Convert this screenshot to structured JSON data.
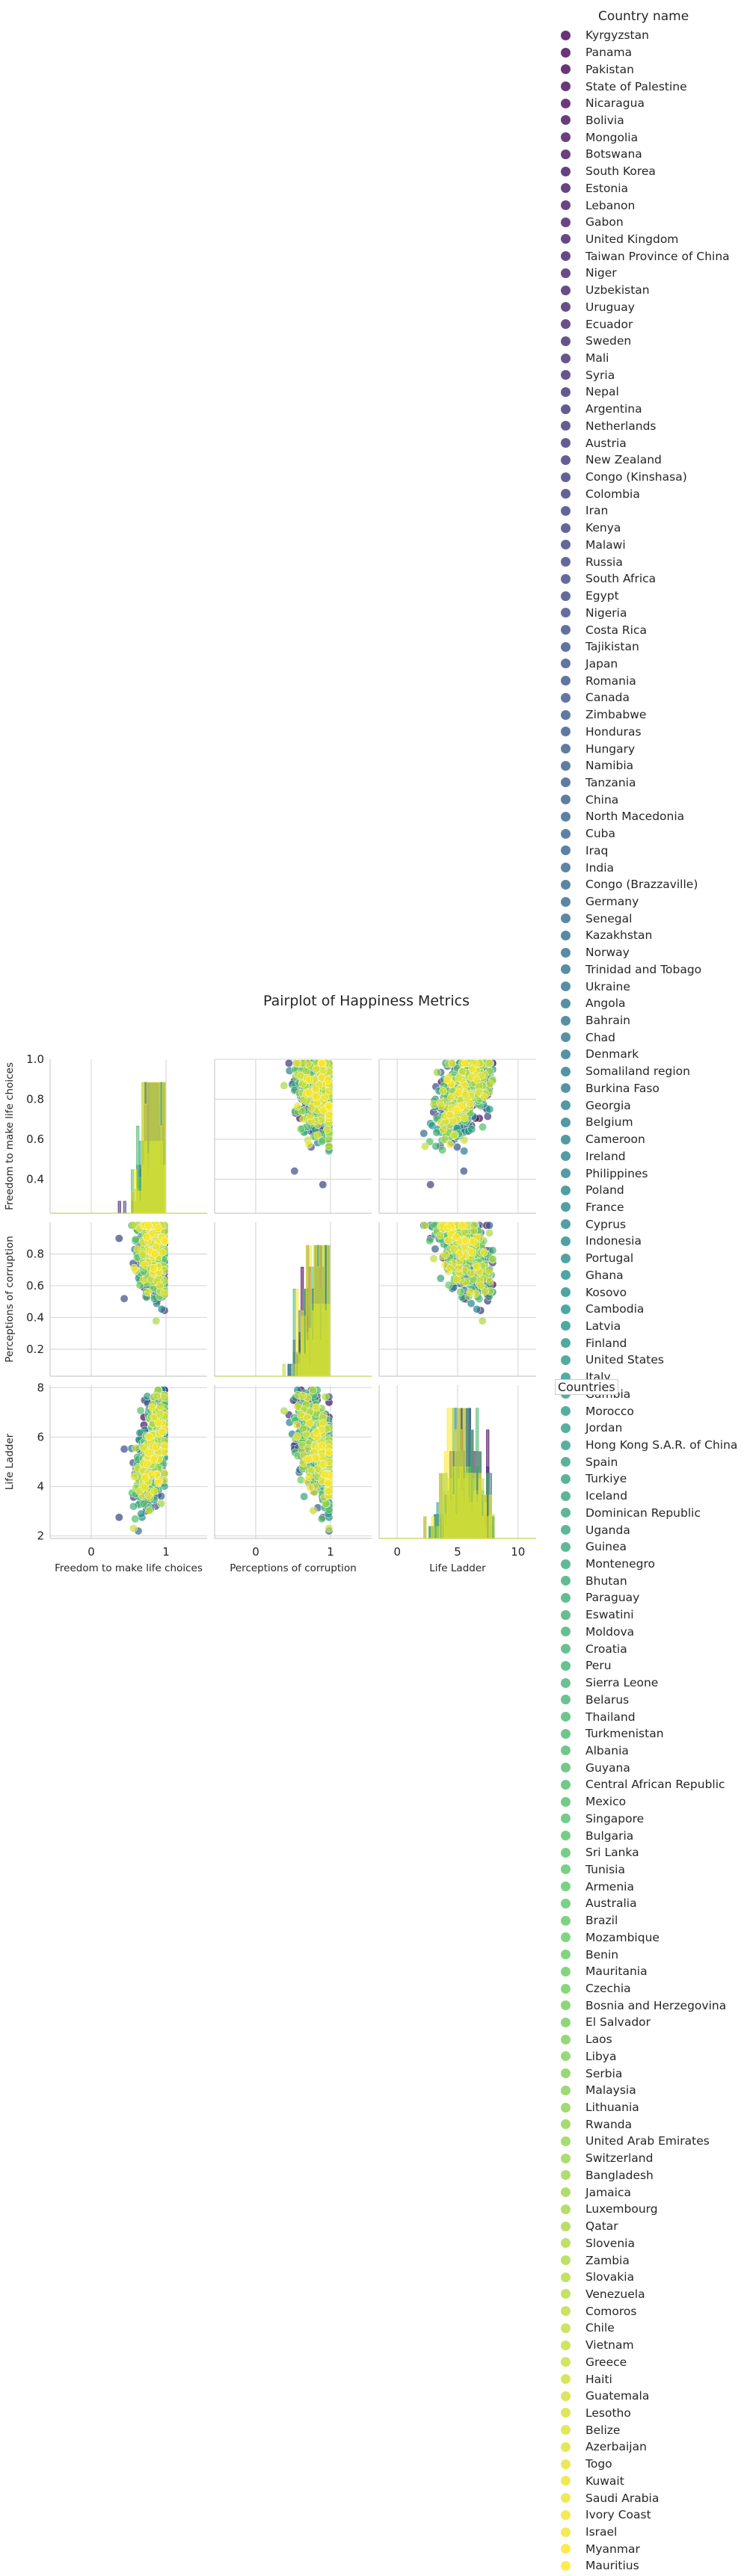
{
  "figure": {
    "title": "Pairplot of Happiness Metrics",
    "legend_title": "Country name",
    "overlay_legend_title": "Countries"
  },
  "chart_data": {
    "type": "scatter",
    "variables": [
      "Freedom to make life choices",
      "Perceptions of corruption",
      "Life Ladder"
    ],
    "axis_ticks": {
      "Freedom to make life choices": {
        "x_ticks": [
          "0",
          "1"
        ],
        "x_range": [
          -0.55,
          1.55
        ],
        "y_ticks": [
          "0.4",
          "0.6",
          "0.8",
          "1.0"
        ],
        "y_range": [
          0.23,
          1.0
        ]
      },
      "Perceptions of corruption": {
        "x_ticks": [
          "0",
          "1"
        ],
        "x_range": [
          -0.55,
          1.55
        ],
        "y_ticks": [
          "0.2",
          "0.4",
          "0.6",
          "0.8"
        ],
        "y_range": [
          0.03,
          1.0
        ]
      },
      "Life Ladder": {
        "x_ticks": [
          "0",
          "5",
          "10"
        ],
        "x_range": [
          -1.5,
          11.5
        ],
        "y_ticks": [
          "2",
          "4",
          "6",
          "8"
        ],
        "y_range": [
          1.9,
          8.1
        ]
      }
    },
    "diagonal": "histogram",
    "grid": true,
    "colormap": [
      "#440154",
      "#3b528b",
      "#21918c",
      "#5ec962",
      "#fde725"
    ],
    "countries": [
      "Kyrgyzstan",
      "Panama",
      "Pakistan",
      "State of Palestine",
      "Nicaragua",
      "Bolivia",
      "Mongolia",
      "Botswana",
      "South Korea",
      "Estonia",
      "Lebanon",
      "Gabon",
      "United Kingdom",
      "Taiwan Province of China",
      "Niger",
      "Uzbekistan",
      "Uruguay",
      "Ecuador",
      "Sweden",
      "Mali",
      "Syria",
      "Nepal",
      "Argentina",
      "Netherlands",
      "Austria",
      "New Zealand",
      "Congo (Kinshasa)",
      "Colombia",
      "Iran",
      "Kenya",
      "Malawi",
      "Russia",
      "South Africa",
      "Egypt",
      "Nigeria",
      "Costa Rica",
      "Tajikistan",
      "Japan",
      "Romania",
      "Canada",
      "Zimbabwe",
      "Honduras",
      "Hungary",
      "Namibia",
      "Tanzania",
      "China",
      "North Macedonia",
      "Cuba",
      "Iraq",
      "India",
      "Congo (Brazzaville)",
      "Germany",
      "Senegal",
      "Kazakhstan",
      "Norway",
      "Trinidad and Tobago",
      "Ukraine",
      "Angola",
      "Bahrain",
      "Chad",
      "Denmark",
      "Somaliland region",
      "Burkina Faso",
      "Georgia",
      "Belgium",
      "Cameroon",
      "Ireland",
      "Philippines",
      "Poland",
      "France",
      "Cyprus",
      "Indonesia",
      "Portugal",
      "Ghana",
      "Kosovo",
      "Cambodia",
      "Latvia",
      "Finland",
      "United States",
      "Italy",
      "Gambia",
      "Morocco",
      "Jordan",
      "Hong Kong S.A.R. of China",
      "Spain",
      "Turkiye",
      "Iceland",
      "Dominican Republic",
      "Uganda",
      "Guinea",
      "Montenegro",
      "Bhutan",
      "Paraguay",
      "Eswatini",
      "Moldova",
      "Croatia",
      "Peru",
      "Sierra Leone",
      "Belarus",
      "Thailand",
      "Turkmenistan",
      "Albania",
      "Guyana",
      "Central African Republic",
      "Mexico",
      "Singapore",
      "Bulgaria",
      "Sri Lanka",
      "Tunisia",
      "Armenia",
      "Australia",
      "Brazil",
      "Mozambique",
      "Benin",
      "Mauritania",
      "Czechia",
      "Bosnia and Herzegovina",
      "El Salvador",
      "Laos",
      "Libya",
      "Serbia",
      "Malaysia",
      "Lithuania",
      "Rwanda",
      "United Arab Emirates",
      "Switzerland",
      "Bangladesh",
      "Jamaica",
      "Luxembourg",
      "Qatar",
      "Slovenia",
      "Zambia",
      "Slovakia",
      "Venezuela",
      "Comoros",
      "Chile",
      "Vietnam",
      "Greece",
      "Haiti",
      "Guatemala",
      "Lesotho",
      "Belize",
      "Azerbaijan",
      "Togo",
      "Kuwait",
      "Saudi Arabia",
      "Ivory Coast",
      "Israel",
      "Myanmar",
      "Mauritius"
    ]
  }
}
